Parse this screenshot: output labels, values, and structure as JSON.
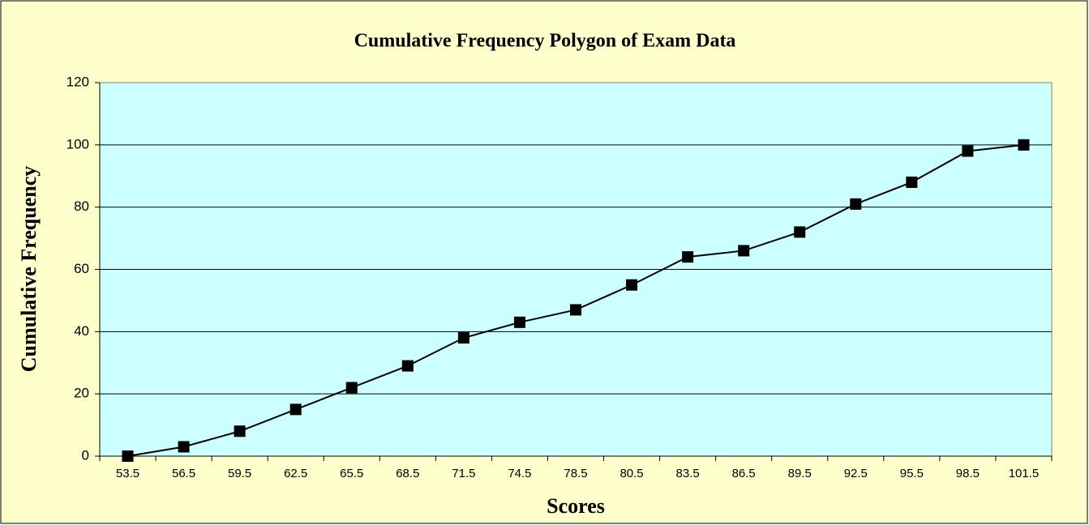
{
  "chart_data": {
    "type": "line",
    "title": "Cumulative Frequency Polygon of Exam Data",
    "x_label": "Scores",
    "y_label": "Cumulative Frequency",
    "categories": [
      "53.5",
      "56.5",
      "59.5",
      "62.5",
      "65.5",
      "68.5",
      "71.5",
      "74.5",
      "78.5",
      "80.5",
      "83.5",
      "86.5",
      "89.5",
      "92.5",
      "95.5",
      "98.5",
      "101.5"
    ],
    "series": [
      {
        "name": "Cumulative Frequency",
        "color": "#000000",
        "values": [
          0,
          3,
          8,
          15,
          22,
          29,
          38,
          43,
          47,
          55,
          64,
          66,
          72,
          81,
          88,
          98,
          100
        ]
      }
    ],
    "ylim": [
      0,
      120
    ],
    "yticks": [
      0,
      20,
      40,
      60,
      80,
      100,
      120
    ],
    "grid": true,
    "plot_background": "#ccffff",
    "background": "#ffffcc"
  }
}
